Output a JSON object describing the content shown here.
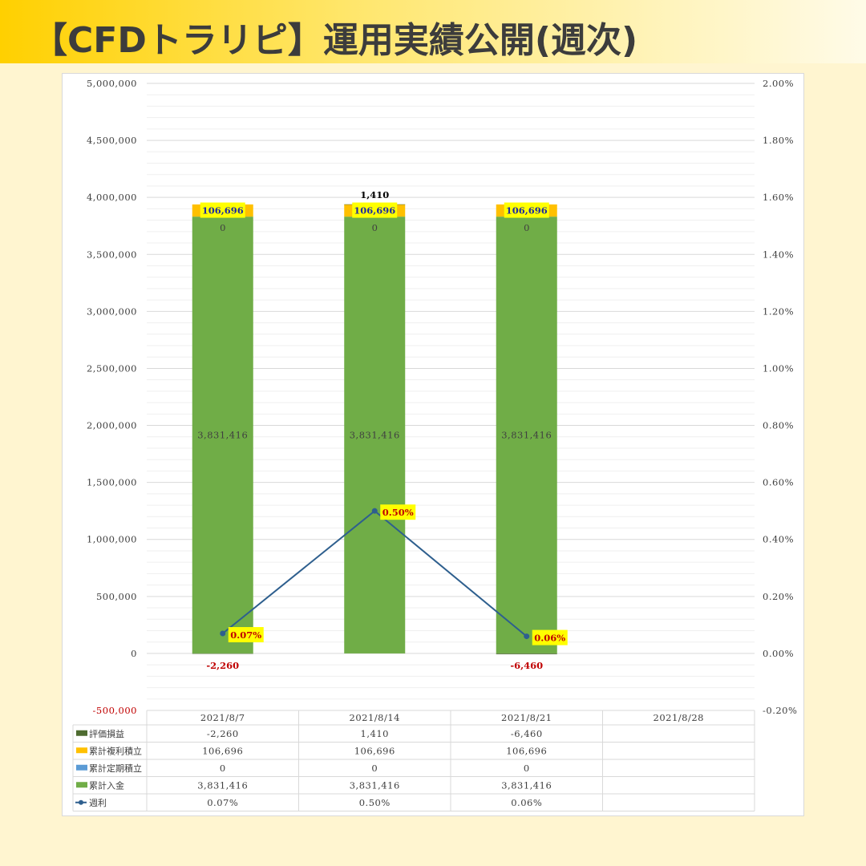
{
  "title": "【CFDトラリピ】運用実績公開(週次)",
  "chart_data": {
    "type": "bar",
    "stacked": true,
    "categories": [
      "2021/8/7",
      "2021/8/14",
      "2021/8/21",
      "2021/8/28"
    ],
    "series": [
      {
        "name": "評価損益",
        "kind": "bar",
        "color": "#4e6b30",
        "values": [
          -2260,
          1410,
          -6460,
          null
        ],
        "labels": [
          "-2,260",
          "1,410",
          "-6,460",
          ""
        ]
      },
      {
        "name": "累計複利積立",
        "kind": "bar",
        "color": "#ffc000",
        "values": [
          106696,
          106696,
          106696,
          null
        ],
        "labels": [
          "106,696",
          "106,696",
          "106,696",
          ""
        ]
      },
      {
        "name": "累計定期積立",
        "kind": "bar",
        "color": "#5b9bd5",
        "values": [
          0,
          0,
          0,
          null
        ],
        "labels": [
          "0",
          "0",
          "0",
          ""
        ]
      },
      {
        "name": "累計入金",
        "kind": "bar",
        "color": "#70ad47",
        "values": [
          3831416,
          3831416,
          3831416,
          null
        ],
        "labels": [
          "3,831,416",
          "3,831,416",
          "3,831,416",
          ""
        ]
      },
      {
        "name": "週利",
        "kind": "line",
        "axis": "right",
        "color": "#2e5f8e",
        "values": [
          0.07,
          0.5,
          0.06,
          null
        ],
        "labels": [
          "0.07%",
          "0.50%",
          "0.06%",
          ""
        ]
      }
    ],
    "left_axis": {
      "min": -500000,
      "max": 5000000,
      "step": 500000,
      "tick_labels": [
        "-500,000",
        "0",
        "500,000",
        "1,000,000",
        "1,500,000",
        "2,000,000",
        "2,500,000",
        "3,000,000",
        "3,500,000",
        "4,000,000",
        "4,500,000",
        "5,000,000"
      ]
    },
    "right_axis": {
      "min": -0.2,
      "max": 2.0,
      "step": 0.2,
      "tick_labels": [
        "-0.20%",
        "0.00%",
        "0.20%",
        "0.40%",
        "0.60%",
        "0.80%",
        "1.00%",
        "1.20%",
        "1.40%",
        "1.60%",
        "1.80%",
        "2.00%"
      ]
    },
    "grid": true,
    "legend": "data-table",
    "data_table": {
      "rows": [
        {
          "name": "評価損益",
          "color": "#4e6b30",
          "cells": [
            "-2,260",
            "1,410",
            "-6,460",
            ""
          ]
        },
        {
          "name": "累計複利積立",
          "color": "#ffc000",
          "cells": [
            "106,696",
            "106,696",
            "106,696",
            ""
          ]
        },
        {
          "name": "累計定期積立",
          "color": "#5b9bd5",
          "cells": [
            "0",
            "0",
            "0",
            ""
          ]
        },
        {
          "name": "累計入金",
          "color": "#70ad47",
          "cells": [
            "3,831,416",
            "3,831,416",
            "3,831,416",
            ""
          ]
        },
        {
          "name": "週利",
          "color": "#2e5f8e",
          "cells": [
            "0.07%",
            "0.50%",
            "0.06%",
            ""
          ]
        }
      ]
    }
  }
}
